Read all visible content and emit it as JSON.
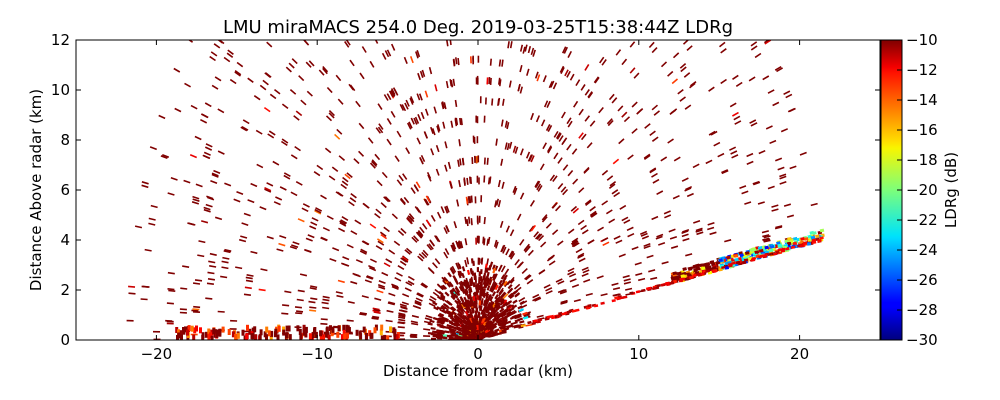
{
  "chart_data": {
    "type": "heatmap",
    "title": "LMU miraMACS 254.0 Deg. 2019-03-25T15:38:44Z  LDRg",
    "xlabel": "Distance from radar (km)",
    "ylabel": "Distance Above radar  (km)",
    "xlim": [
      -25,
      25
    ],
    "ylim": [
      0,
      12
    ],
    "x_ticks": [
      -20,
      -10,
      0,
      10,
      20
    ],
    "x_tick_labels": [
      "−20",
      "−10",
      "0",
      "10",
      "20"
    ],
    "y_ticks": [
      0,
      2,
      4,
      6,
      8,
      10,
      12
    ],
    "y_tick_labels": [
      "0",
      "2",
      "4",
      "6",
      "8",
      "10",
      "12"
    ],
    "colorbar": {
      "label": "LDRg (dB)",
      "range": [
        -30,
        -10
      ],
      "colormap": "jet",
      "ticks": [
        -10,
        -12,
        -14,
        -16,
        -18,
        -20,
        -22,
        -24,
        -26,
        -28,
        -30
      ],
      "tick_labels": [
        "−10",
        "−12",
        "−14",
        "−16",
        "−18",
        "−20",
        "−22",
        "−24",
        "−26",
        "−28",
        "−30"
      ]
    },
    "scan": {
      "description": "RHI scan, sparse noise echoes mostly near -10 dB",
      "near_radar_cluster": {
        "x_range": [
          -3,
          3
        ],
        "y_range": [
          0,
          2.5
        ],
        "value": -10
      },
      "elevated_layer": {
        "x_range": [
          12,
          21.5
        ],
        "y_range": [
          1.6,
          4.0
        ],
        "value_range": [
          -28,
          -10
        ]
      },
      "surface_band_left": {
        "x_range": [
          -19,
          -5
        ],
        "y_range": [
          0,
          0.6
        ],
        "value_range": [
          -16,
          -10
        ]
      },
      "background_echo_value": -10
    }
  },
  "colors": {
    "dominant_echo": "#7f0000",
    "axes": "#000000",
    "background": "#ffffff"
  }
}
